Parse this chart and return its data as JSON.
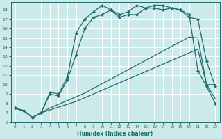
{
  "xlabel": "Humidex (Indice chaleur)",
  "xlim": [
    -0.5,
    23.5
  ],
  "ylim": [
    6,
    18.8
  ],
  "yticks": [
    6,
    7,
    8,
    9,
    10,
    11,
    12,
    13,
    14,
    15,
    16,
    17,
    18
  ],
  "xticks": [
    0,
    1,
    2,
    3,
    4,
    5,
    6,
    7,
    8,
    9,
    10,
    11,
    12,
    13,
    14,
    15,
    16,
    17,
    18,
    19,
    20,
    21,
    22,
    23
  ],
  "bg_color": "#cceaea",
  "grid_color": "#b0d8d8",
  "line_color": "#1f6b6b",
  "line1_y": [
    7.5,
    7.2,
    6.5,
    7.0,
    7.3,
    7.6,
    7.9,
    8.2,
    8.6,
    9.0,
    9.4,
    9.8,
    10.2,
    10.6,
    11.0,
    11.4,
    11.8,
    12.2,
    12.6,
    13.0,
    13.4,
    13.8,
    10.0,
    8.5
  ],
  "line2_y": [
    7.5,
    7.2,
    6.5,
    7.0,
    7.5,
    7.9,
    8.3,
    8.7,
    9.1,
    9.6,
    10.1,
    10.6,
    11.1,
    11.6,
    12.1,
    12.6,
    13.1,
    13.6,
    14.1,
    14.6,
    15.1,
    15.0,
    10.0,
    10.0
  ],
  "line3_y": [
    7.5,
    7.2,
    6.5,
    7.0,
    9.0,
    8.8,
    10.5,
    13.2,
    16.0,
    17.2,
    17.5,
    18.0,
    17.2,
    17.5,
    17.5,
    18.2,
    18.2,
    18.0,
    18.2,
    18.0,
    17.2,
    17.0,
    12.5,
    9.8
  ],
  "line4_y": [
    7.5,
    7.2,
    6.5,
    7.0,
    9.2,
    9.0,
    10.8,
    15.5,
    17.0,
    17.8,
    18.5,
    18.0,
    17.5,
    17.8,
    18.5,
    18.2,
    18.5,
    18.5,
    18.2,
    18.0,
    17.5,
    11.5,
    9.8,
    8.0
  ]
}
